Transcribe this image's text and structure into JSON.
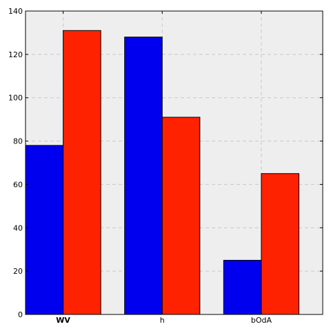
{
  "chart_data": {
    "type": "bar",
    "categories": [
      "WV",
      "h",
      "bOdA"
    ],
    "series": [
      {
        "values": [
          78,
          128,
          25
        ],
        "color": "#0000ee"
      },
      {
        "values": [
          131,
          91,
          65
        ],
        "color": "#ff2200"
      }
    ],
    "title": "",
    "xlabel": "",
    "ylabel": "",
    "ylim": [
      0,
      140
    ],
    "yticks": [
      0,
      20,
      40,
      60,
      80,
      100,
      120,
      140
    ],
    "grid": true,
    "grid_style": "dashed",
    "plot_background": "#eeeeee"
  }
}
